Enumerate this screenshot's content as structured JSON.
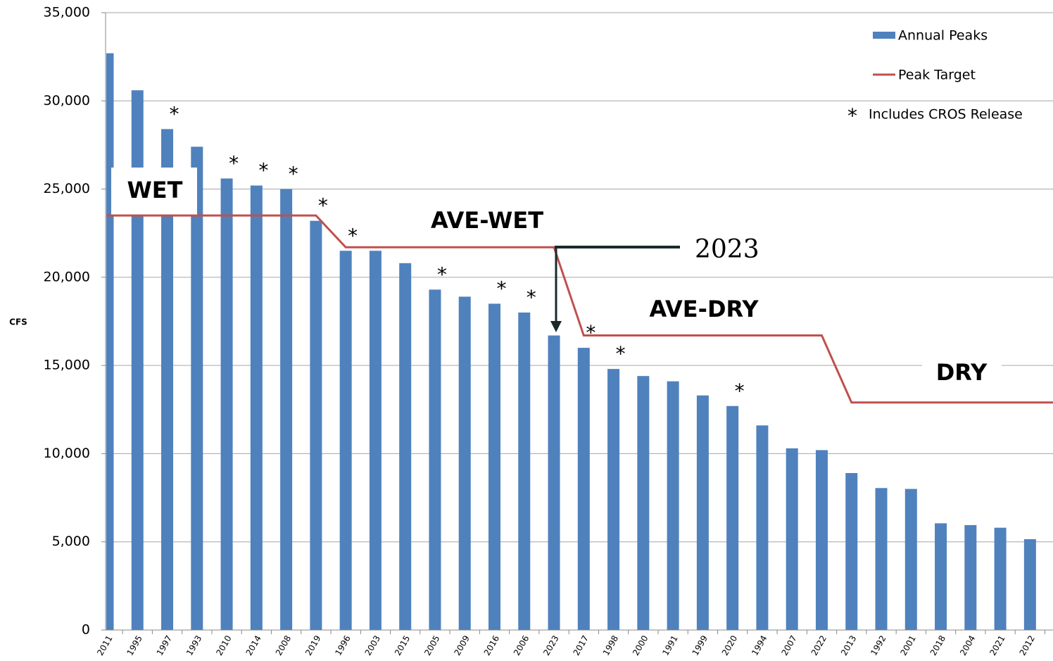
{
  "chart_data": {
    "type": "bar",
    "y_label": "CFS",
    "categories": [
      "2011",
      "1995",
      "1997",
      "1993",
      "2010",
      "2014",
      "2008",
      "2019",
      "1996",
      "2003",
      "2015",
      "2005",
      "2009",
      "2016",
      "2006",
      "2023",
      "2017",
      "1998",
      "2000",
      "1991",
      "1999",
      "2020",
      "1994",
      "2007",
      "2022",
      "2013",
      "1992",
      "2001",
      "2018",
      "2004",
      "2021",
      "2012"
    ],
    "series": [
      {
        "name": "Annual Peaks",
        "color": "#4f81bd",
        "type": "bar",
        "values": [
          32700,
          30600,
          28400,
          27400,
          25600,
          25200,
          25000,
          23200,
          21500,
          21500,
          20800,
          19300,
          18900,
          18500,
          18000,
          16700,
          16000,
          14800,
          14400,
          14100,
          13300,
          12700,
          11600,
          10300,
          10200,
          8900,
          8050,
          8000,
          6050,
          5950,
          5800,
          5150
        ]
      },
      {
        "name": "Peak Target",
        "color": "#c0504d",
        "type": "line",
        "values": [
          23500,
          23500,
          23500,
          23500,
          23500,
          23500,
          23500,
          23500,
          21700,
          21700,
          21700,
          21700,
          21700,
          21700,
          21700,
          21700,
          16700,
          16700,
          16700,
          16700,
          16700,
          16700,
          16700,
          16700,
          16700,
          12900,
          12900,
          12900,
          12900,
          12900,
          12900,
          12900
        ]
      }
    ],
    "cros_marker": "*",
    "cros_label": "Includes CROS Release",
    "cros_release": [
      false,
      false,
      true,
      false,
      true,
      true,
      true,
      true,
      true,
      false,
      false,
      true,
      false,
      true,
      true,
      false,
      true,
      true,
      false,
      false,
      false,
      true,
      false,
      false,
      false,
      false,
      false,
      false,
      false,
      false,
      false,
      false
    ],
    "zones": [
      "WET",
      "AVE-WET",
      "AVE-DRY",
      "DRY"
    ],
    "arrow_label": "2023",
    "ylim": [
      0,
      35000
    ],
    "yticks": [
      0,
      {
        "value": 5000,
        "label": "5,000"
      },
      {
        "value": 10000,
        "label": "10,000"
      },
      {
        "value": 15000,
        "label": "15,000"
      },
      {
        "value": 20000,
        "label": "20,000"
      },
      {
        "value": 25000,
        "label": "25,000"
      },
      {
        "value": 30000,
        "label": "30,000"
      },
      {
        "value": 35000,
        "label": "35,000"
      }
    ],
    "grid": true
  }
}
